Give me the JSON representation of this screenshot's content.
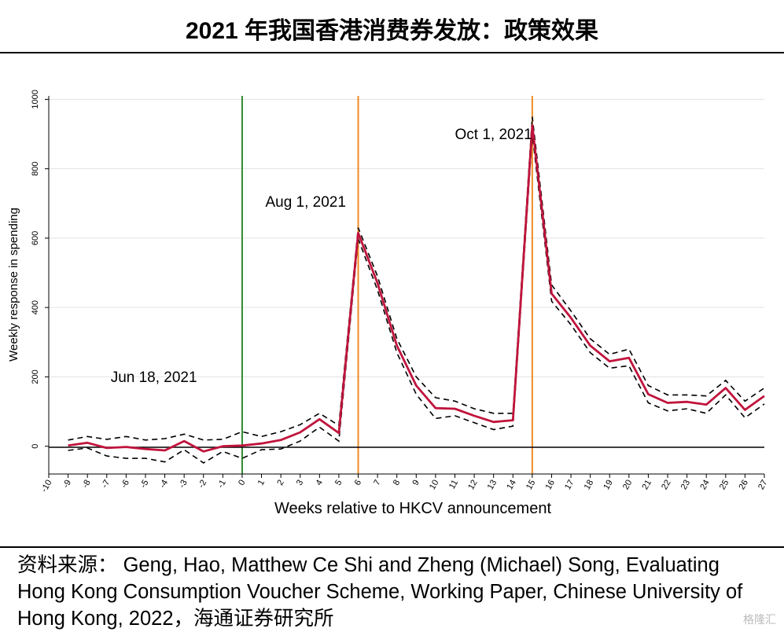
{
  "title": "2021 年我国香港消费券发放：政策效果",
  "source": "资料来源： Geng, Hao, Matthew Ce Shi and Zheng (Michael) Song, Evaluating Hong Kong Consumption Voucher Scheme, Working Paper, Chinese University of Hong Kong, 2022，海通证券研究所",
  "watermark": "格隆汇",
  "chart_data": {
    "type": "line",
    "xlabel": "Weeks relative to HKCV announcement",
    "ylabel": "Weekly response in spending",
    "xlim": [
      -10,
      27
    ],
    "ylim": [
      -80,
      1010
    ],
    "xticks": [
      -10,
      -9,
      -8,
      -7,
      -6,
      -5,
      -4,
      -3,
      -2,
      -1,
      0,
      1,
      2,
      3,
      4,
      5,
      6,
      7,
      8,
      9,
      10,
      11,
      12,
      13,
      14,
      15,
      16,
      17,
      18,
      19,
      20,
      21,
      22,
      23,
      24,
      25,
      26,
      27
    ],
    "yticks": [
      0,
      200,
      400,
      600,
      800,
      1000
    ],
    "grid": true,
    "x": [
      -9,
      -8,
      -7,
      -6,
      -5,
      -4,
      -3,
      -2,
      -1,
      0,
      1,
      2,
      3,
      4,
      5,
      6,
      7,
      8,
      9,
      10,
      11,
      12,
      13,
      14,
      15,
      16,
      17,
      18,
      19,
      20,
      21,
      22,
      23,
      24,
      25,
      26,
      27
    ],
    "series": [
      {
        "role": "estimate",
        "color": "#c0143c",
        "values": [
          2,
          10,
          -5,
          -2,
          -8,
          -12,
          15,
          -15,
          0,
          2,
          8,
          18,
          40,
          78,
          38,
          615,
          470,
          290,
          175,
          110,
          108,
          88,
          70,
          75,
          925,
          440,
          370,
          290,
          245,
          255,
          150,
          125,
          128,
          120,
          168,
          105,
          145
        ]
      },
      {
        "role": "upper",
        "color": "#000000",
        "values": [
          18,
          28,
          20,
          28,
          18,
          22,
          35,
          18,
          20,
          42,
          28,
          42,
          62,
          95,
          60,
          630,
          490,
          310,
          200,
          140,
          130,
          108,
          95,
          95,
          950,
          465,
          390,
          310,
          265,
          280,
          175,
          148,
          148,
          145,
          190,
          130,
          168
        ]
      },
      {
        "role": "lower",
        "color": "#000000",
        "values": [
          -12,
          -5,
          -28,
          -35,
          -35,
          -45,
          -10,
          -48,
          -15,
          -35,
          -10,
          -8,
          15,
          55,
          15,
          598,
          450,
          270,
          150,
          80,
          88,
          68,
          48,
          58,
          900,
          418,
          350,
          270,
          225,
          232,
          125,
          102,
          108,
          95,
          148,
          82,
          122
        ]
      }
    ],
    "vlines": [
      {
        "x": 0,
        "color": "#2e8b2e",
        "label": ""
      },
      {
        "x": 6,
        "color": "#f08a24",
        "label": ""
      },
      {
        "x": 15,
        "color": "#f08a24",
        "label": ""
      }
    ],
    "annotations": [
      {
        "text": "Jun 18, 2021",
        "x": -6.8,
        "y": 185
      },
      {
        "text": "Aug 1, 2021",
        "x": 1.2,
        "y": 690
      },
      {
        "text": "Oct 1, 2021",
        "x": 11.0,
        "y": 885
      }
    ]
  }
}
